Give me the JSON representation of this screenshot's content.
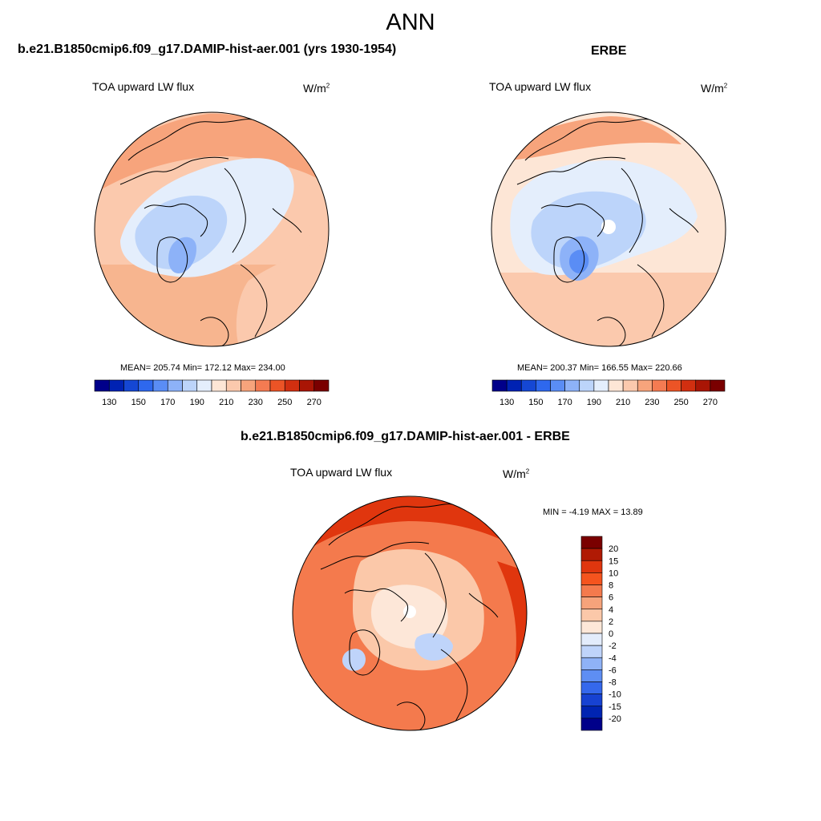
{
  "page": {
    "season": "ANN"
  },
  "panels": {
    "model": {
      "title": "b.e21.B1850cmip6.f09_g17.DAMIP-hist-aer.001 (yrs 1930-1954)",
      "variable": "TOA upward LW flux",
      "units_base": "W/m",
      "units_exp": "2",
      "stats": "MEAN= 205.74  Min= 172.12  Max= 234.00"
    },
    "obs": {
      "title": "ERBE",
      "variable": "TOA upward LW flux",
      "units_base": "W/m",
      "units_exp": "2",
      "stats": "MEAN= 200.37  Min= 166.55  Max= 220.66"
    },
    "diff": {
      "title": "b.e21.B1850cmip6.f09_g17.DAMIP-hist-aer.001 - ERBE",
      "variable": "TOA upward LW flux",
      "units_base": "W/m",
      "units_exp": "2",
      "stats": "MIN =  -4.19 MAX =  13.89"
    }
  },
  "colorbars": {
    "abs": {
      "labels": [
        "130",
        "150",
        "170",
        "190",
        "210",
        "230",
        "250",
        "270"
      ],
      "colors": [
        "#00008a",
        "#0022b3",
        "#1547d4",
        "#2e68ee",
        "#5a8df5",
        "#8db2f8",
        "#bcd4fa",
        "#e4eefc",
        "#fde6d6",
        "#fbc9ad",
        "#f7a47c",
        "#f47b52",
        "#ec5426",
        "#d12f10",
        "#a91505",
        "#7a0000"
      ]
    },
    "diff": {
      "labels": [
        "20",
        "15",
        "10",
        "8",
        "6",
        "4",
        "2",
        "0",
        "-2",
        "-4",
        "-6",
        "-8",
        "-10",
        "-15",
        "-20"
      ],
      "colors": [
        "#7a0000",
        "#b01a04",
        "#e0360e",
        "#f5541e",
        "#f47a4d",
        "#f6a37b",
        "#fbc8a9",
        "#fde7d8",
        "#e3ecfb",
        "#bfd4fa",
        "#8fb2f6",
        "#5e8ef3",
        "#3568ec",
        "#1742d2",
        "#0024b2",
        "#00008a"
      ]
    }
  },
  "map_data": {
    "projection": "north polar stereographic",
    "field": "TOA upward LW flux",
    "model_range": [
      172.12,
      234.0
    ],
    "obs_range": [
      166.55,
      220.66
    ],
    "diff_range": [
      -4.19,
      13.89
    ]
  }
}
